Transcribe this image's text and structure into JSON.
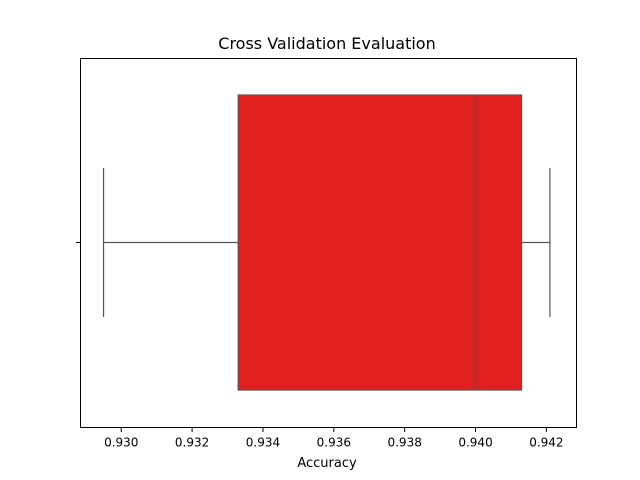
{
  "chart_data": {
    "type": "box",
    "title": "Cross Validation Evaluation",
    "xlabel": "Accuracy",
    "ylabel": "",
    "xlim": [
      0.92885,
      0.94285
    ],
    "xticks": [
      0.93,
      0.932,
      0.934,
      0.936,
      0.938,
      0.94,
      0.942
    ],
    "xtick_labels": [
      "0.930",
      "0.932",
      "0.934",
      "0.936",
      "0.938",
      "0.940",
      "0.942"
    ],
    "box": {
      "whisker_low": 0.9295,
      "q1": 0.9333,
      "median": 0.94,
      "q3": 0.9413,
      "whisker_high": 0.9421,
      "color": "#e01f1f",
      "line_color": "#555555"
    },
    "grid": false
  }
}
